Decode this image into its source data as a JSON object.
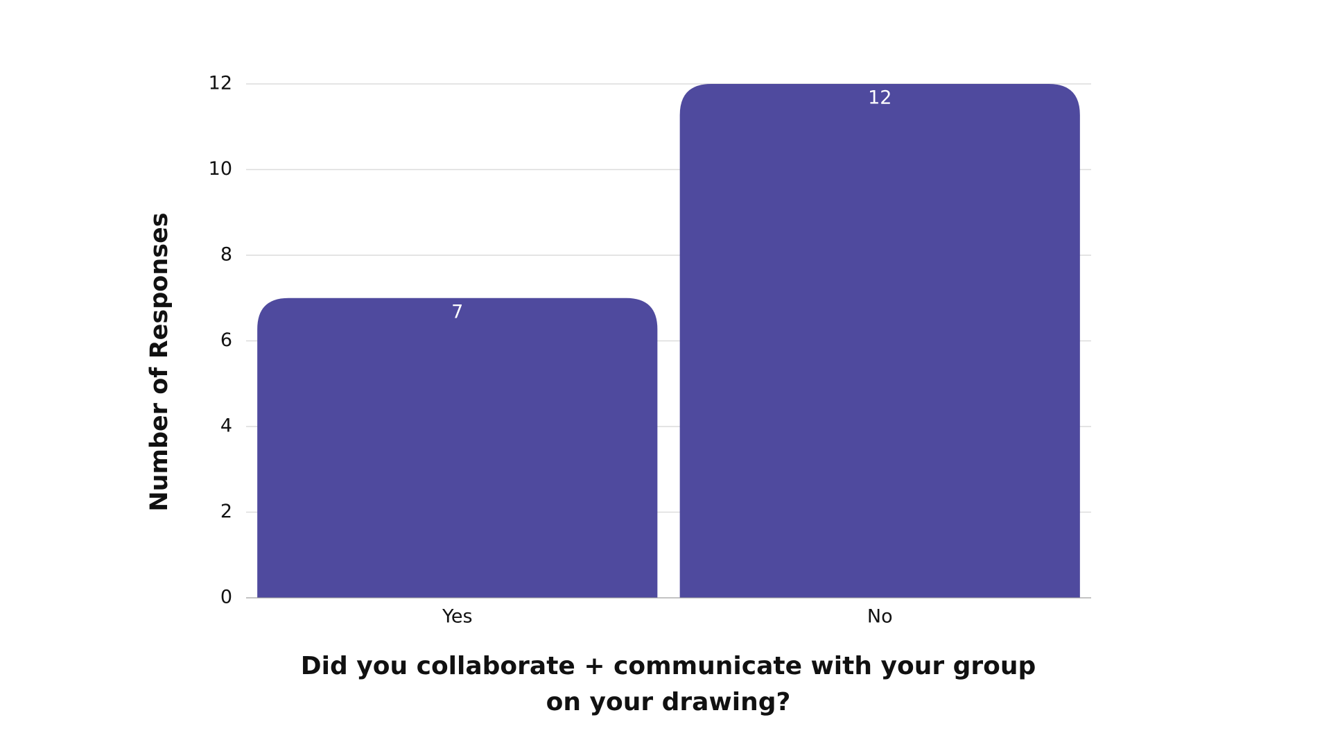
{
  "chart_data": {
    "type": "bar",
    "categories": [
      "Yes",
      "No"
    ],
    "values": [
      7,
      12
    ],
    "color": "#4f4a9e",
    "xlabel": "Did you collaborate + communicate with your group on your drawing?",
    "ylabel": "Number of Responses",
    "ylim": [
      0,
      12
    ],
    "yticks": [
      0,
      2,
      4,
      6,
      8,
      10,
      12
    ],
    "grid": true
  }
}
